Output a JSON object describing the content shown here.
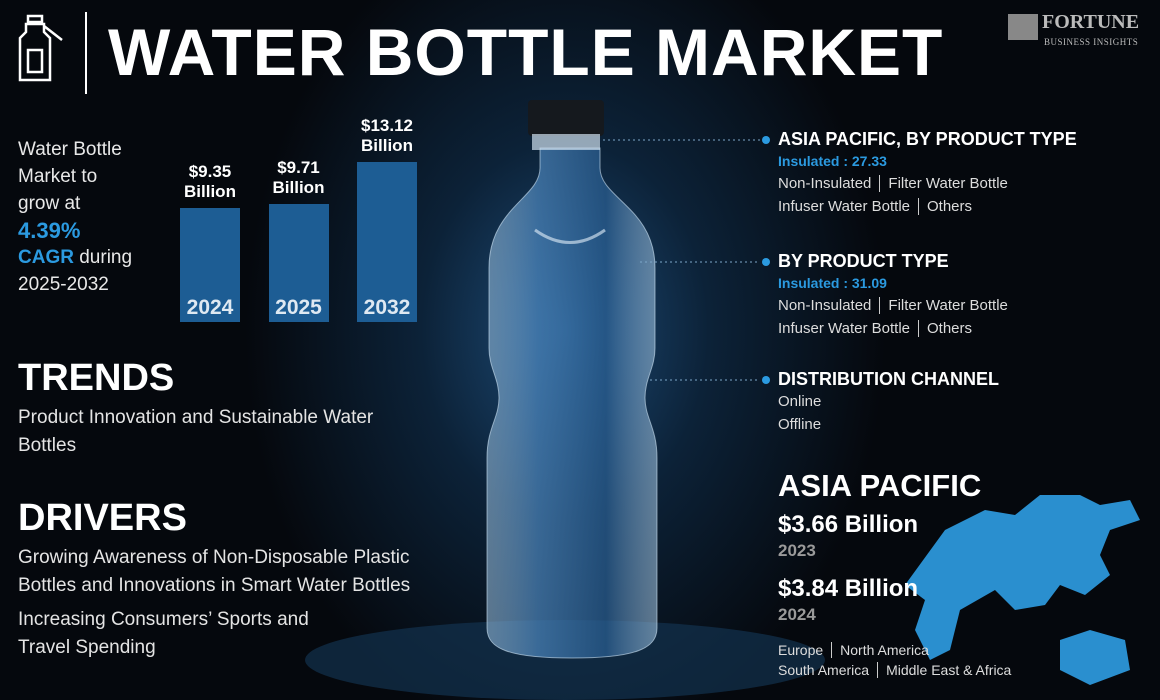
{
  "header": {
    "title": "WATER BOTTLE MARKET",
    "brand": "FORTUNE",
    "brand_sub": "BUSINESS INSIGHTS"
  },
  "growth": {
    "lead": "Water Bottle Market to grow at",
    "rate": "4.39%",
    "cagr": "CAGR",
    "during": "during",
    "period": "2025-2032"
  },
  "chart_data": {
    "type": "bar",
    "categories": [
      "2024",
      "2025",
      "2032"
    ],
    "values": [
      9.35,
      9.71,
      13.12
    ],
    "value_labels": [
      "$9.35 Billion",
      "$9.71 Billion",
      "$13.12 Billion"
    ],
    "color": "#1d5d94"
  },
  "trends": {
    "title": "TRENDS",
    "items": [
      "Product Innovation and Sustainable Water Bottles"
    ]
  },
  "drivers": {
    "title": "DRIVERS",
    "items": [
      "Growing Awareness of Non-Disposable Plastic Bottles and Innovations in Smart Water Bottles",
      "Increasing Consumers’ Sports and Travel Spending"
    ]
  },
  "segments": [
    {
      "title": "ASIA PACIFIC, BY PRODUCT TYPE",
      "highlight": "Insulated : 27.33",
      "rows": [
        [
          "Non-Insulated",
          "Filter Water Bottle"
        ],
        [
          "Infuser Water Bottle",
          "Others"
        ]
      ]
    },
    {
      "title": "BY PRODUCT TYPE",
      "highlight": "Insulated : 31.09",
      "rows": [
        [
          "Non-Insulated",
          "Filter Water Bottle"
        ],
        [
          "Infuser Water Bottle",
          "Others"
        ]
      ]
    },
    {
      "title": "DISTRIBUTION CHANNEL",
      "rows": [
        [
          "Online"
        ],
        [
          "Offline"
        ]
      ]
    }
  ],
  "region": {
    "title": "ASIA PACIFIC",
    "stats": [
      {
        "value": "$3.66 Billion",
        "year": "2023"
      },
      {
        "value": "$3.84 Billion",
        "year": "2024"
      }
    ],
    "others": [
      [
        "Europe",
        "North America"
      ],
      [
        "South America",
        "Middle East & Africa"
      ]
    ]
  }
}
